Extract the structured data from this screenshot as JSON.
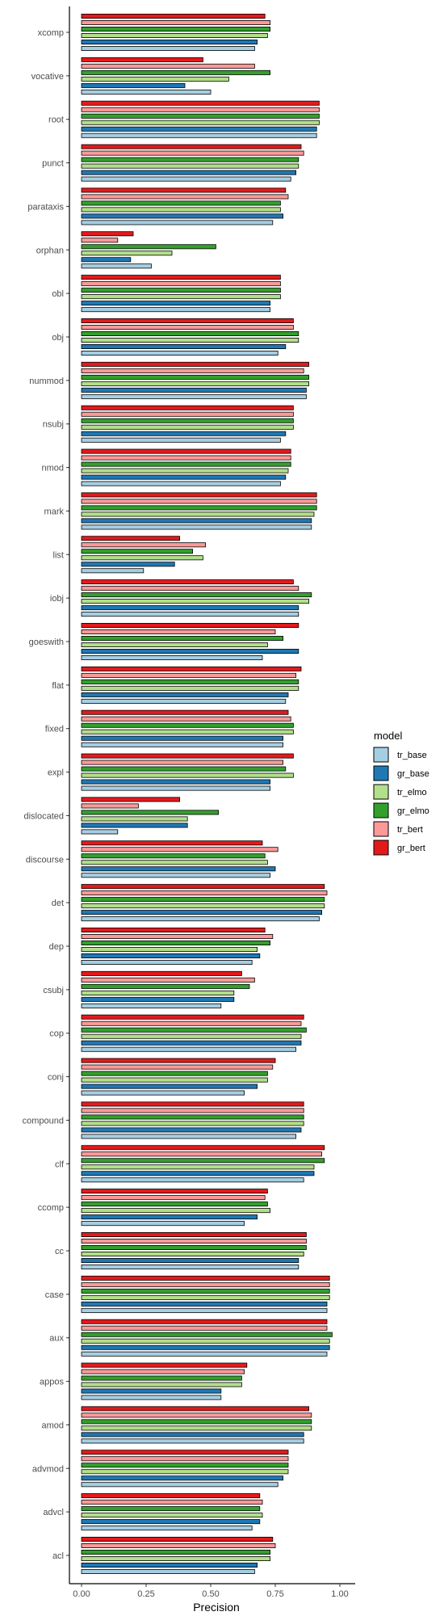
{
  "chart_data": {
    "type": "bar",
    "orientation": "horizontal",
    "xlabel": "Precision",
    "ylabel": "",
    "xlim": [
      0,
      1
    ],
    "xticks": [
      "0.00",
      "0.25",
      "0.50",
      "0.75",
      "1.00"
    ],
    "grid": false,
    "legend": {
      "title": "model",
      "position": "right"
    },
    "categories": [
      "xcomp",
      "vocative",
      "root",
      "punct",
      "parataxis",
      "orphan",
      "obl",
      "obj",
      "nummod",
      "nsubj",
      "nmod",
      "mark",
      "list",
      "iobj",
      "goeswith",
      "flat",
      "fixed",
      "expl",
      "dislocated",
      "discourse",
      "det",
      "dep",
      "csubj",
      "cop",
      "conj",
      "compound",
      "clf",
      "ccomp",
      "cc",
      "case",
      "aux",
      "appos",
      "amod",
      "advmod",
      "advcl",
      "acl"
    ],
    "series": [
      {
        "name": "tr_base",
        "color": "#a6cee3",
        "values": [
          0.67,
          0.5,
          0.91,
          0.81,
          0.74,
          0.27,
          0.73,
          0.76,
          0.87,
          0.77,
          0.77,
          0.89,
          0.24,
          0.84,
          0.7,
          0.79,
          0.78,
          0.73,
          0.14,
          0.73,
          0.92,
          0.66,
          0.54,
          0.83,
          0.63,
          0.83,
          0.86,
          0.63,
          0.84,
          0.95,
          0.95,
          0.54,
          0.86,
          0.76,
          0.66,
          0.67
        ]
      },
      {
        "name": "gr_base",
        "color": "#1f78b4",
        "values": [
          0.68,
          0.4,
          0.91,
          0.83,
          0.78,
          0.19,
          0.73,
          0.79,
          0.87,
          0.79,
          0.79,
          0.89,
          0.36,
          0.84,
          0.84,
          0.8,
          0.78,
          0.73,
          0.41,
          0.75,
          0.93,
          0.69,
          0.59,
          0.85,
          0.68,
          0.85,
          0.9,
          0.68,
          0.84,
          0.95,
          0.96,
          0.54,
          0.86,
          0.78,
          0.69,
          0.68
        ]
      },
      {
        "name": "tr_elmo",
        "color": "#b2df8a",
        "values": [
          0.72,
          0.57,
          0.92,
          0.84,
          0.77,
          0.35,
          0.77,
          0.84,
          0.88,
          0.82,
          0.8,
          0.9,
          0.47,
          0.88,
          0.72,
          0.84,
          0.82,
          0.82,
          0.41,
          0.72,
          0.94,
          0.68,
          0.59,
          0.85,
          0.72,
          0.86,
          0.9,
          0.73,
          0.86,
          0.96,
          0.96,
          0.62,
          0.89,
          0.8,
          0.7,
          0.73
        ]
      },
      {
        "name": "gr_elmo",
        "color": "#33a02c",
        "values": [
          0.73,
          0.73,
          0.92,
          0.84,
          0.77,
          0.52,
          0.77,
          0.84,
          0.88,
          0.82,
          0.81,
          0.91,
          0.43,
          0.89,
          0.78,
          0.84,
          0.82,
          0.79,
          0.53,
          0.71,
          0.94,
          0.73,
          0.65,
          0.87,
          0.72,
          0.86,
          0.94,
          0.72,
          0.87,
          0.96,
          0.97,
          0.62,
          0.89,
          0.8,
          0.69,
          0.73
        ]
      },
      {
        "name": "tr_bert",
        "color": "#fb9a99",
        "values": [
          0.73,
          0.67,
          0.92,
          0.86,
          0.8,
          0.14,
          0.77,
          0.82,
          0.86,
          0.82,
          0.81,
          0.91,
          0.48,
          0.84,
          0.75,
          0.83,
          0.81,
          0.78,
          0.22,
          0.76,
          0.95,
          0.74,
          0.67,
          0.85,
          0.74,
          0.86,
          0.93,
          0.71,
          0.87,
          0.96,
          0.95,
          0.63,
          0.89,
          0.8,
          0.7,
          0.75
        ]
      },
      {
        "name": "gr_bert",
        "color": "#e31a1c",
        "values": [
          0.71,
          0.47,
          0.92,
          0.85,
          0.79,
          0.2,
          0.77,
          0.82,
          0.88,
          0.82,
          0.81,
          0.91,
          0.38,
          0.82,
          0.84,
          0.85,
          0.8,
          0.82,
          0.38,
          0.7,
          0.94,
          0.71,
          0.62,
          0.86,
          0.75,
          0.86,
          0.94,
          0.72,
          0.87,
          0.96,
          0.95,
          0.64,
          0.88,
          0.8,
          0.69,
          0.74
        ]
      }
    ]
  }
}
